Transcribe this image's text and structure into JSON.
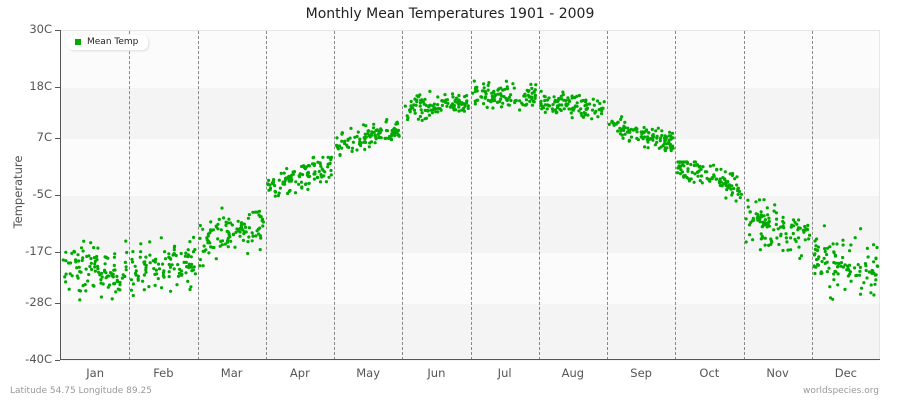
{
  "chart_data": {
    "type": "scatter",
    "title": "Monthly Mean Temperatures 1901 - 2009",
    "xlabel": "",
    "ylabel": "Temperature",
    "categories": [
      "Jan",
      "Feb",
      "Mar",
      "Apr",
      "May",
      "Jun",
      "Jul",
      "Aug",
      "Sep",
      "Oct",
      "Nov",
      "Dec"
    ],
    "y_ticks": [
      "30C",
      "18C",
      "7C",
      "-5C",
      "-17C",
      "-28C",
      "-40C"
    ],
    "y_tick_values": [
      30,
      18,
      7,
      -5,
      -17,
      -28,
      -40
    ],
    "ylim": [
      -40,
      30
    ],
    "grid": "alternating horizontal bands, dashed vertical month separators",
    "legend": {
      "position": "top-left",
      "entries": [
        "Mean Temp"
      ]
    },
    "series": [
      {
        "name": "Mean Temp",
        "color": "#00aa00",
        "years": [
          1901,
          2009
        ],
        "points_per_month": 109,
        "monthly_mean": [
          -21,
          -20,
          -13,
          -1,
          7,
          14,
          16,
          14,
          8,
          -1,
          -12,
          -20
        ],
        "monthly_min": [
          -30,
          -30,
          -20,
          -7,
          3,
          9,
          12,
          10,
          4,
          -8,
          -20,
          -29
        ],
        "monthly_max": [
          -13,
          -14,
          -6,
          3,
          11,
          17,
          20,
          17,
          12,
          2,
          -6,
          -10
        ]
      }
    ]
  },
  "header": {
    "title": "Monthly Mean Temperatures 1901 - 2009"
  },
  "axis": {
    "y_title": "Temperature"
  },
  "legend": {
    "label": "Mean Temp",
    "color": "#00aa00"
  },
  "footer": {
    "location": "Latitude 54.75 Longitude 89.25",
    "source": "worldspecies.org"
  }
}
